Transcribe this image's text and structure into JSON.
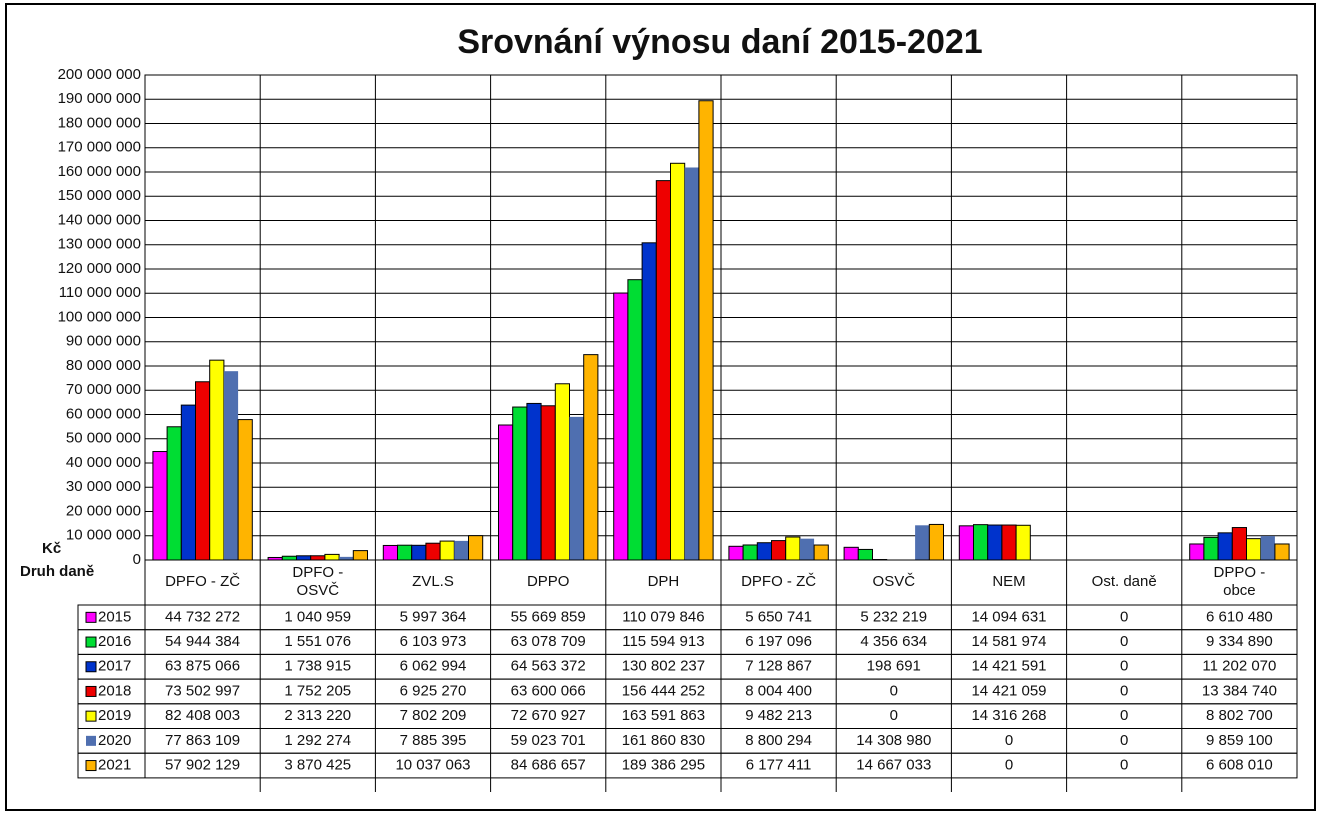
{
  "chart_data": {
    "type": "bar",
    "title": "Srovnání výnosu daní 2015-2021",
    "y_label": "Kč",
    "x_label": "Druh daně",
    "categories": [
      "DPFO - ZČ",
      "DPFO - OSVČ",
      "ZVL.S",
      "DPPO",
      "DPH",
      "DPFO - ZČ",
      "OSVČ",
      "NEM",
      "Ost. daně",
      "DPPO - obce"
    ],
    "ylim": [
      0,
      200000000
    ],
    "yticks": [
      0,
      {
        "value": 10000000,
        "label": "10 000 000"
      },
      {
        "value": 20000000,
        "label": "20 000 000"
      },
      {
        "value": 30000000,
        "label": "30 000 000"
      },
      {
        "value": 40000000,
        "label": "40 000 000"
      },
      {
        "value": 50000000,
        "label": "50 000 000"
      },
      {
        "value": 60000000,
        "label": "60 000 000"
      },
      {
        "value": 70000000,
        "label": "70 000 000"
      },
      {
        "value": 80000000,
        "label": "80 000 000"
      },
      {
        "value": 90000000,
        "label": "90 000 000"
      },
      {
        "value": 100000000,
        "label": "100 000 000"
      },
      {
        "value": 110000000,
        "label": "110 000 000"
      },
      {
        "value": 120000000,
        "label": "120 000 000"
      },
      {
        "value": 130000000,
        "label": "130 000 000"
      },
      {
        "value": 140000000,
        "label": "140 000 000"
      },
      {
        "value": 150000000,
        "label": "150 000 000"
      },
      {
        "value": 160000000,
        "label": "160 000 000"
      },
      {
        "value": 170000000,
        "label": "170 000 000"
      },
      {
        "value": 180000000,
        "label": "180 000 000"
      },
      {
        "value": 190000000,
        "label": "190 000 000"
      },
      {
        "value": 200000000,
        "label": "200 000 000"
      }
    ],
    "grid": true,
    "series": [
      {
        "name": "2015",
        "color": "#ff00ff",
        "values": [
          44732272,
          1040959,
          5997364,
          55669859,
          110079846,
          5650741,
          5232219,
          14094631,
          0,
          6610480
        ],
        "value_labels": [
          "44 732 272",
          "1 040 959",
          "5 997 364",
          "55 669 859",
          "110 079 846",
          "5 650 741",
          "5 232 219",
          "14 094 631",
          "0",
          "6 610 480"
        ]
      },
      {
        "name": "2016",
        "color": "#00dd33",
        "values": [
          54944384,
          1551076,
          6103973,
          63078709,
          115594913,
          6197096,
          4356634,
          14581974,
          0,
          9334890
        ],
        "value_labels": [
          "54 944 384",
          "1 551 076",
          "6 103 973",
          "63 078 709",
          "115 594 913",
          "6 197 096",
          "4 356 634",
          "14 581 974",
          "0",
          "9 334 890"
        ]
      },
      {
        "name": "2017",
        "color": "#0033cc",
        "values": [
          63875066,
          1738915,
          6062994,
          64563372,
          130802237,
          7128867,
          198691,
          14421591,
          0,
          11202070
        ],
        "value_labels": [
          "63 875 066",
          "1 738 915",
          "6 062 994",
          "64 563 372",
          "130 802 237",
          "7 128 867",
          "198 691",
          "14 421 591",
          "0",
          "11 202 070"
        ]
      },
      {
        "name": "2018",
        "color": "#ee0000",
        "values": [
          73502997,
          1752205,
          6925270,
          63600066,
          156444252,
          8004400,
          0,
          14421059,
          0,
          13384740
        ],
        "value_labels": [
          "73 502 997",
          "1 752 205",
          "6 925 270",
          "63 600 066",
          "156 444 252",
          "8 004 400",
          "0",
          "14 421 059",
          "0",
          "13 384 740"
        ]
      },
      {
        "name": "2019",
        "color": "#ffff00",
        "values": [
          82408003,
          2313220,
          7802209,
          72670927,
          163591863,
          9482213,
          0,
          14316268,
          0,
          8802700
        ],
        "value_labels": [
          "82 408 003",
          "2 313 220",
          "7 802 209",
          "72 670 927",
          "163 591 863",
          "9 482 213",
          "0",
          "14 316 268",
          "0",
          "8 802 700"
        ]
      },
      {
        "name": "2020",
        "color": "#4f6fb0",
        "values": [
          77863109,
          1292274,
          7885395,
          59023701,
          161860830,
          8800294,
          14308980,
          0,
          0,
          9859100
        ],
        "value_labels": [
          "77 863 109",
          "1 292 274",
          "7 885 395",
          "59 023 701",
          "161 860 830",
          "8 800 294",
          "14 308 980",
          "0",
          "0",
          "9 859 100"
        ]
      },
      {
        "name": "2021",
        "color": "#ffb400",
        "values": [
          57902129,
          3870425,
          10037063,
          84686657,
          189386295,
          6177411,
          14667033,
          0,
          0,
          6608010
        ],
        "value_labels": [
          "57 902 129",
          "3 870 425",
          "10 037 063",
          "84 686 657",
          "189 386 295",
          "6 177 411",
          "14 667 033",
          "0",
          "0",
          "6 608 010"
        ]
      }
    ]
  }
}
